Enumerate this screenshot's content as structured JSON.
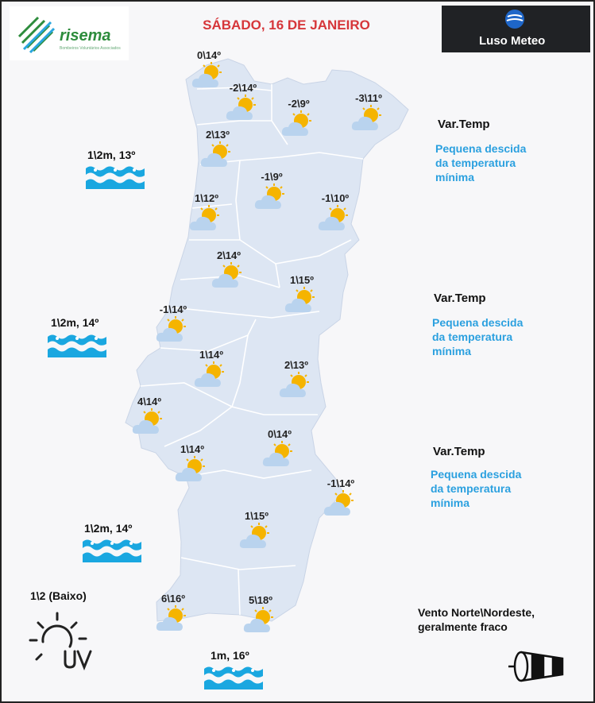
{
  "title": "SÁBADO, 16 DE JANEIRO",
  "logos": {
    "left": {
      "text": "risema",
      "tagline": "Bombeiros Voluntários Associados"
    },
    "right": {
      "text": "Luso Meteo"
    }
  },
  "stations": [
    {
      "temp": "0\\14º",
      "icon": "partly-cloudy-icon"
    },
    {
      "temp": "-2\\14º",
      "icon": "partly-cloudy-icon"
    },
    {
      "temp": "-2\\9º",
      "icon": "partly-cloudy-icon"
    },
    {
      "temp": "-3\\11º",
      "icon": "partly-cloudy-icon"
    },
    {
      "temp": "2\\13º",
      "icon": "partly-cloudy-icon"
    },
    {
      "temp": "-1\\9º",
      "icon": "partly-cloudy-icon"
    },
    {
      "temp": "1\\12º",
      "icon": "partly-cloudy-icon"
    },
    {
      "temp": "-1\\10º",
      "icon": "partly-cloudy-icon"
    },
    {
      "temp": "2\\14º",
      "icon": "partly-cloudy-icon"
    },
    {
      "temp": "1\\15º",
      "icon": "partly-cloudy-icon"
    },
    {
      "temp": "-1\\14º",
      "icon": "partly-cloudy-icon"
    },
    {
      "temp": "1\\14º",
      "icon": "partly-cloudy-icon"
    },
    {
      "temp": "2\\13º",
      "icon": "partly-cloudy-icon"
    },
    {
      "temp": "4\\14º",
      "icon": "partly-cloudy-icon"
    },
    {
      "temp": "0\\14º",
      "icon": "partly-cloudy-icon"
    },
    {
      "temp": "1\\14º",
      "icon": "partly-cloudy-icon"
    },
    {
      "temp": "-1\\14º",
      "icon": "partly-cloudy-icon"
    },
    {
      "temp": "1\\15º",
      "icon": "partly-cloudy-icon"
    },
    {
      "temp": "6\\16º",
      "icon": "partly-cloudy-icon"
    },
    {
      "temp": "5\\18º",
      "icon": "partly-cloudy-icon"
    }
  ],
  "variations": [
    {
      "heading": "Var.Temp",
      "line1": "Pequena descida",
      "line2": "da temperatura",
      "line3": "mínima"
    },
    {
      "heading": "Var.Temp",
      "line1": "Pequena descida",
      "line2": "da temperatura",
      "line3": "mínima"
    },
    {
      "heading": "Var.Temp",
      "line1": "Pequena descida",
      "line2": "da temperatura",
      "line3": "mínima"
    }
  ],
  "sea": [
    {
      "text": "1\\2m, 13º",
      "icon": "waves-icon"
    },
    {
      "text": "1\\2m, 14º",
      "icon": "waves-icon"
    },
    {
      "text": "1\\2m, 14º",
      "icon": "waves-icon"
    },
    {
      "text": "1m, 16º",
      "icon": "waves-icon"
    }
  ],
  "uv": {
    "text": "1\\2 (Baixo)",
    "icon": "uv-sun-icon"
  },
  "wind": {
    "line1": "Vento Norte\\Nordeste,",
    "line2": "geralmente fraco",
    "icon": "windsock-icon"
  },
  "colors": {
    "land": "#dde6f3",
    "border": "#ffffff",
    "title": "#d6363a",
    "note": "#2ba0df",
    "wave": "#1aa7e0",
    "sun": "#f5b400",
    "cloud": "#b9d3ee"
  }
}
